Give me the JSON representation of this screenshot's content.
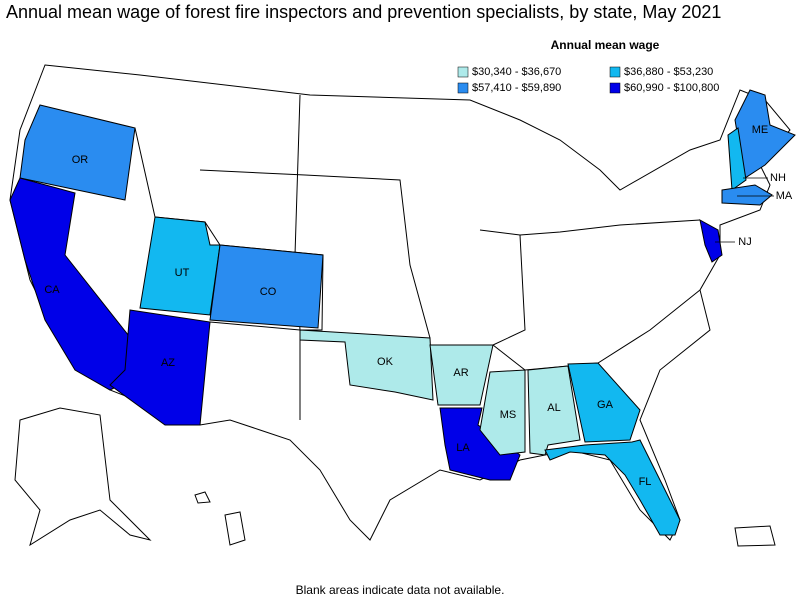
{
  "title": "Annual mean wage of forest fire inspectors and prevention specialists, by state, May 2021",
  "legend": {
    "title": "Annual mean wage",
    "items": [
      {
        "label": "$30,340 - $36,670",
        "color": "#aeeaea"
      },
      {
        "label": "$36,880 - $53,230",
        "color": "#12b8f0"
      },
      {
        "label": "$57,410 - $59,890",
        "color": "#2a8cf0"
      },
      {
        "label": "$60,990 - $100,800",
        "color": "#0000e8"
      }
    ]
  },
  "states": [
    {
      "label": "OR",
      "range": 2
    },
    {
      "label": "CA",
      "range": 3
    },
    {
      "label": "AZ",
      "range": 3
    },
    {
      "label": "UT",
      "range": 1
    },
    {
      "label": "CO",
      "range": 2
    },
    {
      "label": "OK",
      "range": 0
    },
    {
      "label": "AR",
      "range": 0
    },
    {
      "label": "LA",
      "range": 3
    },
    {
      "label": "MS",
      "range": 0
    },
    {
      "label": "AL",
      "range": 0
    },
    {
      "label": "GA",
      "range": 1
    },
    {
      "label": "FL",
      "range": 1
    },
    {
      "label": "ME",
      "range": 2
    },
    {
      "label": "NH",
      "range": 1
    },
    {
      "label": "MA",
      "range": 2
    },
    {
      "label": "NJ",
      "range": 3
    }
  ],
  "note": "Blank areas indicate data not available."
}
